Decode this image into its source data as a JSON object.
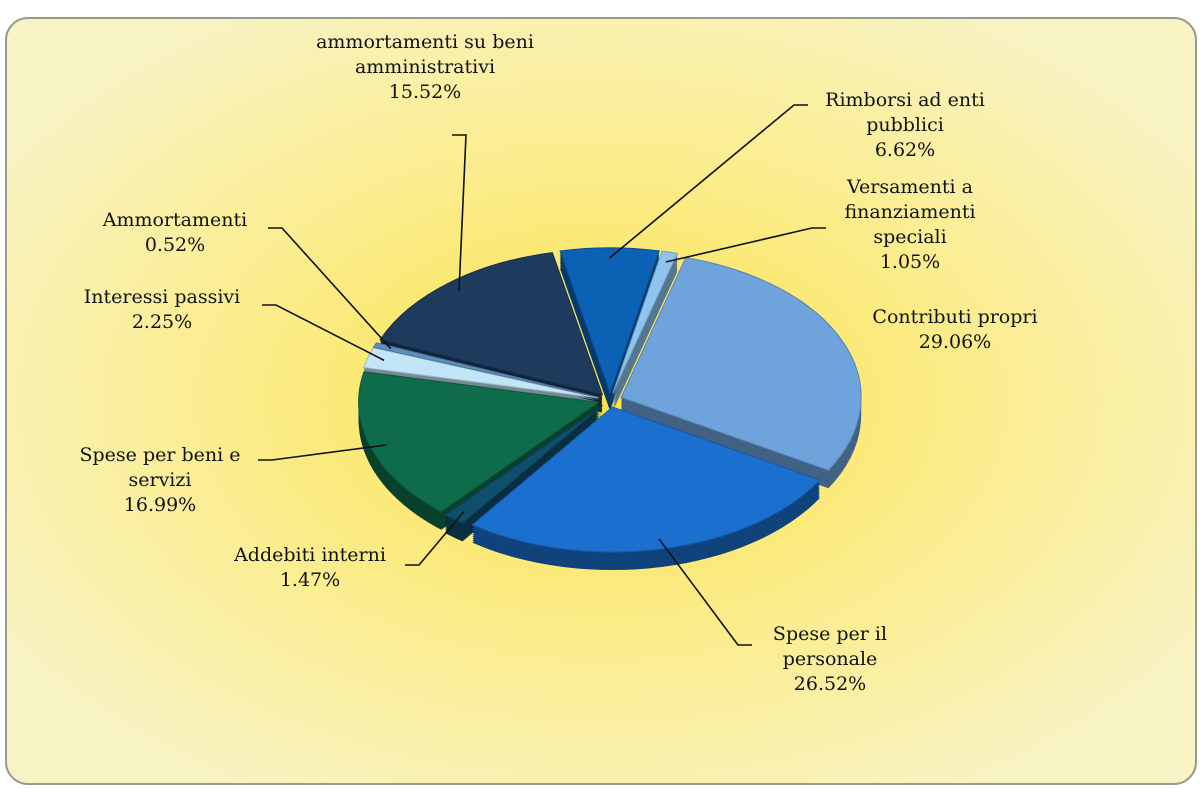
{
  "chart_data": {
    "type": "pie",
    "categories": [
      "Rimborsi ad enti pubblici",
      "Versamenti a finanziamenti speciali",
      "Contributi propri",
      "Spese per il personale",
      "Addebiti interni",
      "Spese per beni e servizi",
      "Interessi passivi",
      "Ammortamenti",
      "ammortamenti su beni amministrativi"
    ],
    "values": [
      6.62,
      1.05,
      29.06,
      26.52,
      1.47,
      16.99,
      2.25,
      0.52,
      15.52
    ],
    "value_labels": [
      "6.62%",
      "1.05%",
      "29.06%",
      "26.52%",
      "1.47%",
      "16.99%",
      "2.25%",
      "0.52%",
      "15.52%"
    ],
    "colors": [
      "#0b62b5",
      "#8ec4ee",
      "#6ea3dc",
      "#1b6fcf",
      "#0f4e6c",
      "#0f6c4a",
      "#c3e5f8",
      "#5b8fc0",
      "#1e3a5d"
    ]
  }
}
